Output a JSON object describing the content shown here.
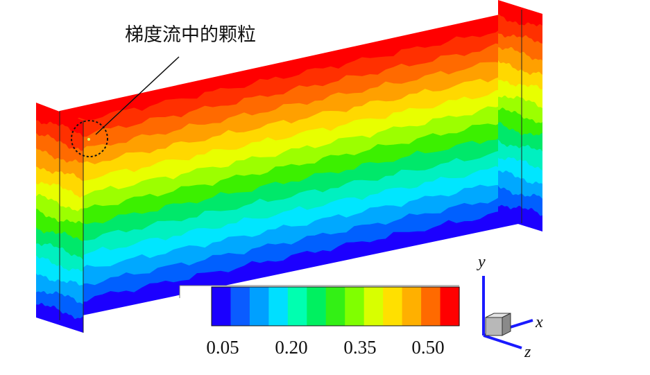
{
  "annotation": {
    "text": "梯度流中的颗粒"
  },
  "colorbar": {
    "bands": [
      "#1a00ff",
      "#0a5cff",
      "#00a0ff",
      "#00dfff",
      "#00ffb0",
      "#00f060",
      "#33f015",
      "#80ff00",
      "#d8ff00",
      "#ffe000",
      "#ffb000",
      "#ff6a00",
      "#ff0000"
    ],
    "ticks": [
      "0.05",
      "0.20",
      "0.35",
      "0.50"
    ]
  },
  "axes_triad": {
    "x": "x",
    "y": "y",
    "z": "z",
    "color": "#1a1aff"
  },
  "contour_colors": [
    "#ff0000",
    "#ff3000",
    "#ff6a00",
    "#ffa000",
    "#ffd800",
    "#e8ff00",
    "#9cff00",
    "#3cf000",
    "#00e86a",
    "#00f0c0",
    "#00e6ff",
    "#00a8ff",
    "#0060ff",
    "#1c00ff"
  ]
}
